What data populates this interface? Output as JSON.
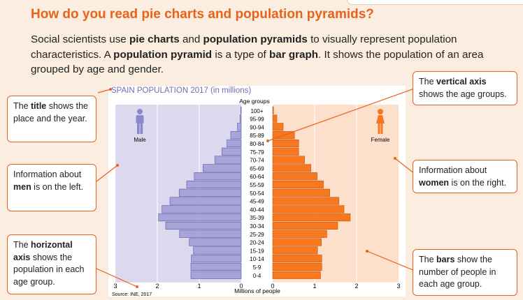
{
  "heading": "How do you read pie charts and population pyramids?",
  "intro": {
    "segments": [
      {
        "t": "Social scientists use ",
        "b": false
      },
      {
        "t": "pie charts",
        "b": true
      },
      {
        "t": " and ",
        "b": false
      },
      {
        "t": "population pyramids",
        "b": true
      },
      {
        "t": " to visually represent population characteristics. A ",
        "b": false
      },
      {
        "t": "population pyramid",
        "b": true
      },
      {
        "t": " is a type of ",
        "b": false
      },
      {
        "t": "bar graph",
        "b": true
      },
      {
        "t": ". It shows the population of an area grouped by age and gender.",
        "b": false
      }
    ]
  },
  "callouts": {
    "title": [
      {
        "t": "The ",
        "b": false
      },
      {
        "t": "title",
        "b": true
      },
      {
        "t": " shows the place and the year.",
        "b": false
      }
    ],
    "men": [
      {
        "t": "Information about ",
        "b": false
      },
      {
        "t": "men",
        "b": true
      },
      {
        "t": " is on the left.",
        "b": false
      }
    ],
    "horizontal": [
      {
        "t": "The ",
        "b": false
      },
      {
        "t": "horizontal axis",
        "b": true
      },
      {
        "t": " shows the population in each age group.",
        "b": false
      }
    ],
    "vertical": [
      {
        "t": "The ",
        "b": false
      },
      {
        "t": "vertical axis",
        "b": true
      },
      {
        "t": " shows the age groups.",
        "b": false
      }
    ],
    "women": [
      {
        "t": "Information about ",
        "b": false
      },
      {
        "t": "women",
        "b": true
      },
      {
        "t": " is on the right.",
        "b": false
      }
    ],
    "bars": [
      {
        "t": "The ",
        "b": false
      },
      {
        "t": "bars",
        "b": true
      },
      {
        "t": " show the number of people in each age group.",
        "b": false
      }
    ]
  },
  "colors": {
    "accent": "#e8621c",
    "male_bg": "#dcd8ee",
    "male_bar": "#a7a4d9",
    "male_stroke": "#5a57a8",
    "female_bg": "#fde0cc",
    "female_bar": "#f7781f",
    "female_stroke": "#c9530f",
    "title_color": "#6f6fb5"
  },
  "chart_data": {
    "type": "bar",
    "title": "SPAIN POPULATION 2017 (in millions)",
    "ylabel": "Age groups",
    "xlabel": "Millions of people",
    "source": "Source: INE, 2017",
    "male_label": "Male",
    "female_label": "Female",
    "xlim": [
      0,
      3
    ],
    "xticks": [
      "0",
      "1",
      "2",
      "3"
    ],
    "categories": [
      "100+",
      "95-99",
      "90-94",
      "85-89",
      "80-84",
      "75-79",
      "70-74",
      "65-69",
      "60-64",
      "55-59",
      "50-54",
      "45-49",
      "40-44",
      "35-39",
      "30-34",
      "25-29",
      "20-24",
      "15-19",
      "10-14",
      "5-9",
      "0-4"
    ],
    "series": [
      {
        "name": "Male",
        "values": [
          0.01,
          0.03,
          0.09,
          0.25,
          0.34,
          0.46,
          0.63,
          0.91,
          1.12,
          1.3,
          1.48,
          1.7,
          1.89,
          1.97,
          1.8,
          1.47,
          1.24,
          1.14,
          1.19,
          1.2,
          1.2
        ]
      },
      {
        "name": "Female",
        "values": [
          0.02,
          0.1,
          0.25,
          0.52,
          0.62,
          0.62,
          0.76,
          0.91,
          1.06,
          1.21,
          1.36,
          1.58,
          1.7,
          1.85,
          1.55,
          1.29,
          1.16,
          1.07,
          1.17,
          1.17,
          1.14
        ]
      }
    ]
  }
}
